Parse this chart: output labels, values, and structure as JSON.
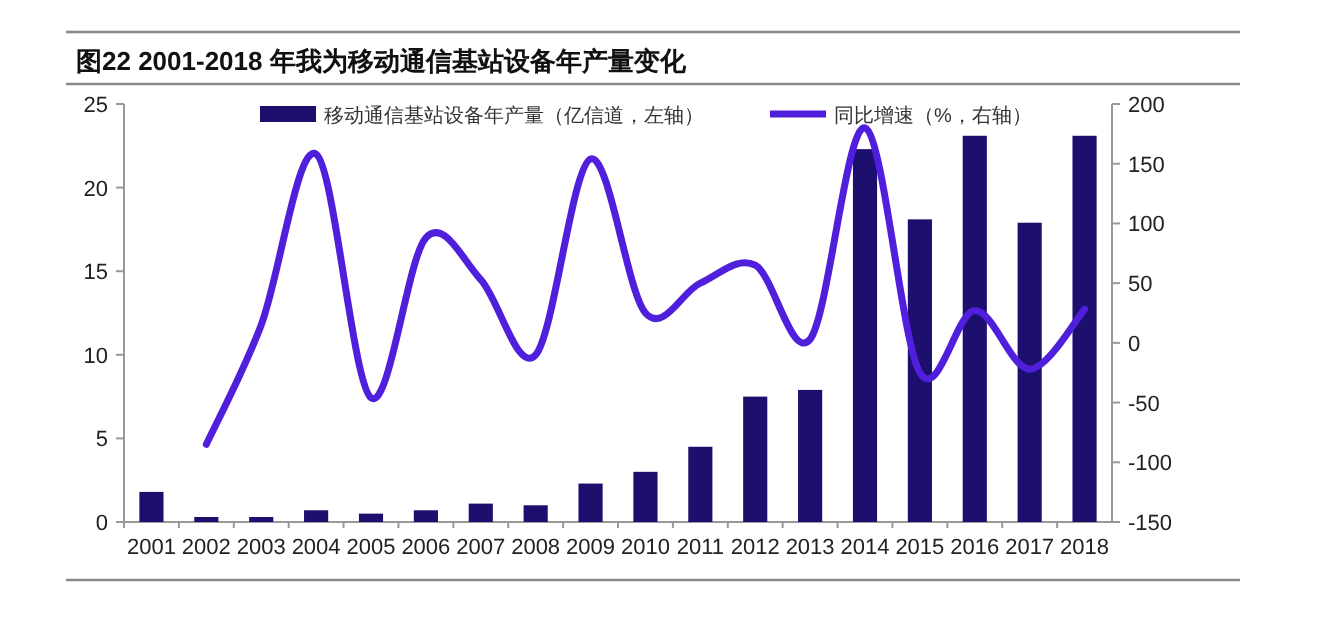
{
  "chart_data": {
    "type": "bar",
    "title": "图22  2001-2018 年我为移动通信基站设备年产量变化",
    "categories": [
      "2001",
      "2002",
      "2003",
      "2004",
      "2005",
      "2006",
      "2007",
      "2008",
      "2009",
      "2010",
      "2011",
      "2012",
      "2013",
      "2014",
      "2015",
      "2016",
      "2017",
      "2018"
    ],
    "series": [
      {
        "name": "移动通信基站设备年产量（亿信道，左轴）",
        "color": "#1c0f6e",
        "values": [
          1.8,
          0.3,
          0.3,
          0.7,
          0.5,
          0.7,
          1.1,
          1.0,
          2.3,
          3.0,
          4.5,
          7.5,
          7.9,
          22.3,
          18.1,
          23.1,
          17.9,
          23.1
        ]
      },
      {
        "name": "同比增速（%，右轴）",
        "type": "line",
        "axis": "y2",
        "color": "#4f1fdc",
        "values": [
          null,
          -85,
          15,
          158,
          -46,
          88,
          53,
          -10,
          154,
          25,
          50,
          65,
          3,
          180,
          -25,
          27,
          -22,
          28
        ]
      }
    ],
    "ylim": [
      0,
      25
    ],
    "yticks": [
      0,
      5,
      10,
      15,
      20,
      25
    ],
    "y2lim": [
      -150,
      200
    ],
    "y2ticks": [
      -150,
      -100,
      -50,
      0,
      50,
      100,
      150,
      200
    ],
    "legend": "top",
    "grid": false,
    "marker": "none",
    "line_style": "solid"
  }
}
